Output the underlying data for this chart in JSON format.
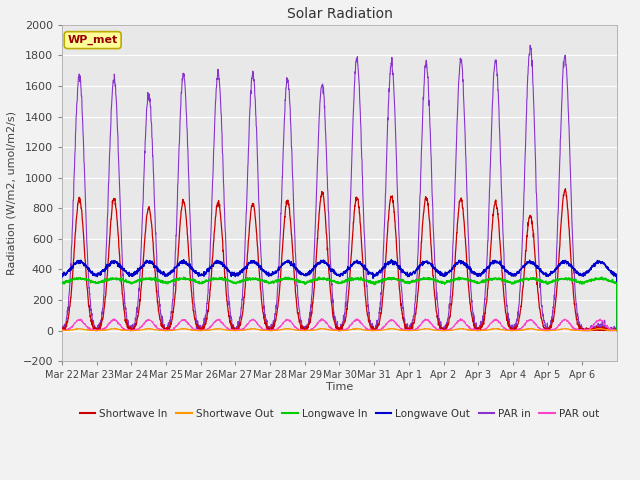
{
  "title": "Solar Radiation",
  "ylabel": "Radiation (W/m2, umol/m2/s)",
  "xlabel": "Time",
  "ylim": [
    -200,
    2000
  ],
  "yticks": [
    -200,
    0,
    200,
    400,
    600,
    800,
    1000,
    1200,
    1400,
    1600,
    1800,
    2000
  ],
  "fig_bg": "#f0f0f0",
  "plot_bg": "#e8e8e8",
  "colors": {
    "shortwave_in": "#cc0000",
    "shortwave_out": "#ff9900",
    "longwave_in": "#00cc00",
    "longwave_out": "#0000cc",
    "par_in": "#8833cc",
    "par_out": "#ff44cc"
  },
  "legend_label": "WP_met",
  "n_days": 16,
  "tick_labels": [
    "Mar 22",
    "Mar 23",
    "Mar 24",
    "Mar 25",
    "Mar 26",
    "Mar 27",
    "Mar 28",
    "Mar 29",
    "Mar 30",
    "Mar 31",
    "Apr 1",
    "Apr 2",
    "Apr 3",
    "Apr 4",
    "Apr 5",
    "Apr 6"
  ],
  "sw_in_peaks": [
    860,
    860,
    800,
    850,
    840,
    830,
    850,
    900,
    870,
    880,
    870,
    860,
    840,
    750,
    920,
    10
  ],
  "par_in_peaks": [
    1670,
    1650,
    1550,
    1680,
    1680,
    1680,
    1650,
    1620,
    1780,
    1750,
    1760,
    1770,
    1770,
    1850,
    1800,
    30
  ]
}
